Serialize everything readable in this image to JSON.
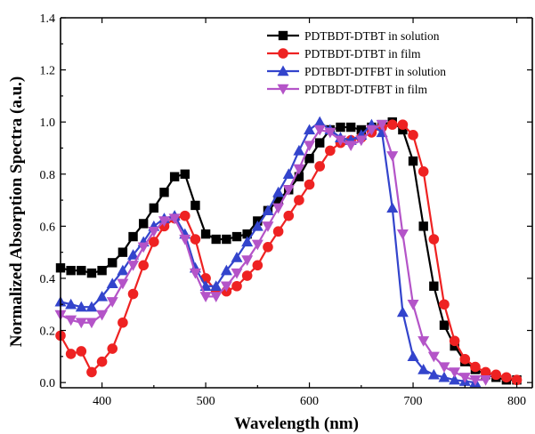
{
  "chart_data": {
    "type": "line",
    "title": "",
    "xlabel": "Wavelength (nm)",
    "ylabel": "Normalized Absorption Spectra (a.u.)",
    "xlim": [
      360,
      815
    ],
    "ylim": [
      -0.02,
      1.4
    ],
    "x_ticks": [
      400,
      500,
      600,
      700,
      800
    ],
    "y_ticks": [
      0.0,
      0.2,
      0.4,
      0.6,
      0.8,
      1.0,
      1.2,
      1.4
    ],
    "y_tick_labels": [
      "0.0",
      "0.2",
      "0.4",
      "0.6",
      "0.8",
      "1.0",
      "1.2",
      "1.4"
    ],
    "grid": false,
    "legend_position": "top-right",
    "series": [
      {
        "name": "PDTBDT-DTBT in solution",
        "color": "#000000",
        "marker": "square",
        "x": [
          360,
          370,
          380,
          390,
          400,
          410,
          420,
          430,
          440,
          450,
          460,
          470,
          480,
          490,
          500,
          510,
          520,
          530,
          540,
          550,
          560,
          570,
          580,
          590,
          600,
          610,
          620,
          630,
          640,
          650,
          660,
          670,
          680,
          690,
          700,
          710,
          720,
          730,
          740,
          750,
          760,
          770,
          780,
          790,
          800
        ],
        "y": [
          0.44,
          0.43,
          0.43,
          0.42,
          0.43,
          0.46,
          0.5,
          0.56,
          0.61,
          0.67,
          0.73,
          0.79,
          0.8,
          0.68,
          0.57,
          0.55,
          0.55,
          0.56,
          0.57,
          0.62,
          0.66,
          0.7,
          0.74,
          0.79,
          0.86,
          0.92,
          0.97,
          0.98,
          0.98,
          0.97,
          0.98,
          0.99,
          1.0,
          0.97,
          0.85,
          0.6,
          0.37,
          0.22,
          0.14,
          0.08,
          0.05,
          0.03,
          0.02,
          0.01,
          0.01
        ]
      },
      {
        "name": "PDTBDT-DTBT in film",
        "color": "#ee2222",
        "marker": "circle",
        "x": [
          360,
          370,
          380,
          390,
          400,
          410,
          420,
          430,
          440,
          450,
          460,
          470,
          480,
          490,
          500,
          510,
          520,
          530,
          540,
          550,
          560,
          570,
          580,
          590,
          600,
          610,
          620,
          630,
          640,
          650,
          660,
          670,
          680,
          690,
          700,
          710,
          720,
          730,
          740,
          750,
          760,
          770,
          780,
          790,
          800
        ],
        "y": [
          0.18,
          0.11,
          0.12,
          0.04,
          0.08,
          0.13,
          0.23,
          0.34,
          0.45,
          0.54,
          0.6,
          0.63,
          0.64,
          0.55,
          0.4,
          0.35,
          0.35,
          0.37,
          0.41,
          0.45,
          0.52,
          0.58,
          0.64,
          0.7,
          0.76,
          0.83,
          0.89,
          0.92,
          0.93,
          0.94,
          0.96,
          0.98,
          0.99,
          0.99,
          0.95,
          0.81,
          0.55,
          0.3,
          0.16,
          0.09,
          0.06,
          0.04,
          0.03,
          0.02,
          0.01
        ]
      },
      {
        "name": "PDTBDT-DTFBT in solution",
        "color": "#3344cc",
        "marker": "triangle-up",
        "x": [
          360,
          370,
          380,
          390,
          400,
          410,
          420,
          430,
          440,
          450,
          460,
          470,
          480,
          490,
          500,
          510,
          520,
          530,
          540,
          550,
          560,
          570,
          580,
          590,
          600,
          610,
          620,
          630,
          640,
          650,
          660,
          670,
          680,
          690,
          700,
          710,
          720,
          730,
          740,
          750,
          760
        ],
        "y": [
          0.31,
          0.3,
          0.29,
          0.29,
          0.33,
          0.38,
          0.43,
          0.49,
          0.54,
          0.6,
          0.63,
          0.64,
          0.57,
          0.44,
          0.37,
          0.37,
          0.43,
          0.48,
          0.54,
          0.6,
          0.66,
          0.73,
          0.8,
          0.89,
          0.97,
          1.0,
          0.97,
          0.94,
          0.93,
          0.95,
          0.99,
          0.96,
          0.67,
          0.27,
          0.1,
          0.05,
          0.03,
          0.02,
          0.01,
          0.005,
          0.0
        ]
      },
      {
        "name": "PDTBDT-DTFBT in film",
        "color": "#b454c8",
        "marker": "triangle-down",
        "x": [
          360,
          370,
          380,
          390,
          400,
          410,
          420,
          430,
          440,
          450,
          460,
          470,
          480,
          490,
          500,
          510,
          520,
          530,
          540,
          550,
          560,
          570,
          580,
          590,
          600,
          610,
          620,
          630,
          640,
          650,
          660,
          670,
          680,
          690,
          700,
          710,
          720,
          730,
          740,
          750,
          760,
          770
        ],
        "y": [
          0.26,
          0.24,
          0.23,
          0.23,
          0.26,
          0.31,
          0.38,
          0.45,
          0.52,
          0.58,
          0.62,
          0.63,
          0.55,
          0.42,
          0.33,
          0.33,
          0.37,
          0.42,
          0.47,
          0.53,
          0.6,
          0.67,
          0.74,
          0.82,
          0.91,
          0.97,
          0.96,
          0.93,
          0.91,
          0.93,
          0.97,
          0.99,
          0.87,
          0.57,
          0.3,
          0.16,
          0.1,
          0.06,
          0.04,
          0.02,
          0.01,
          0.01
        ]
      }
    ]
  }
}
